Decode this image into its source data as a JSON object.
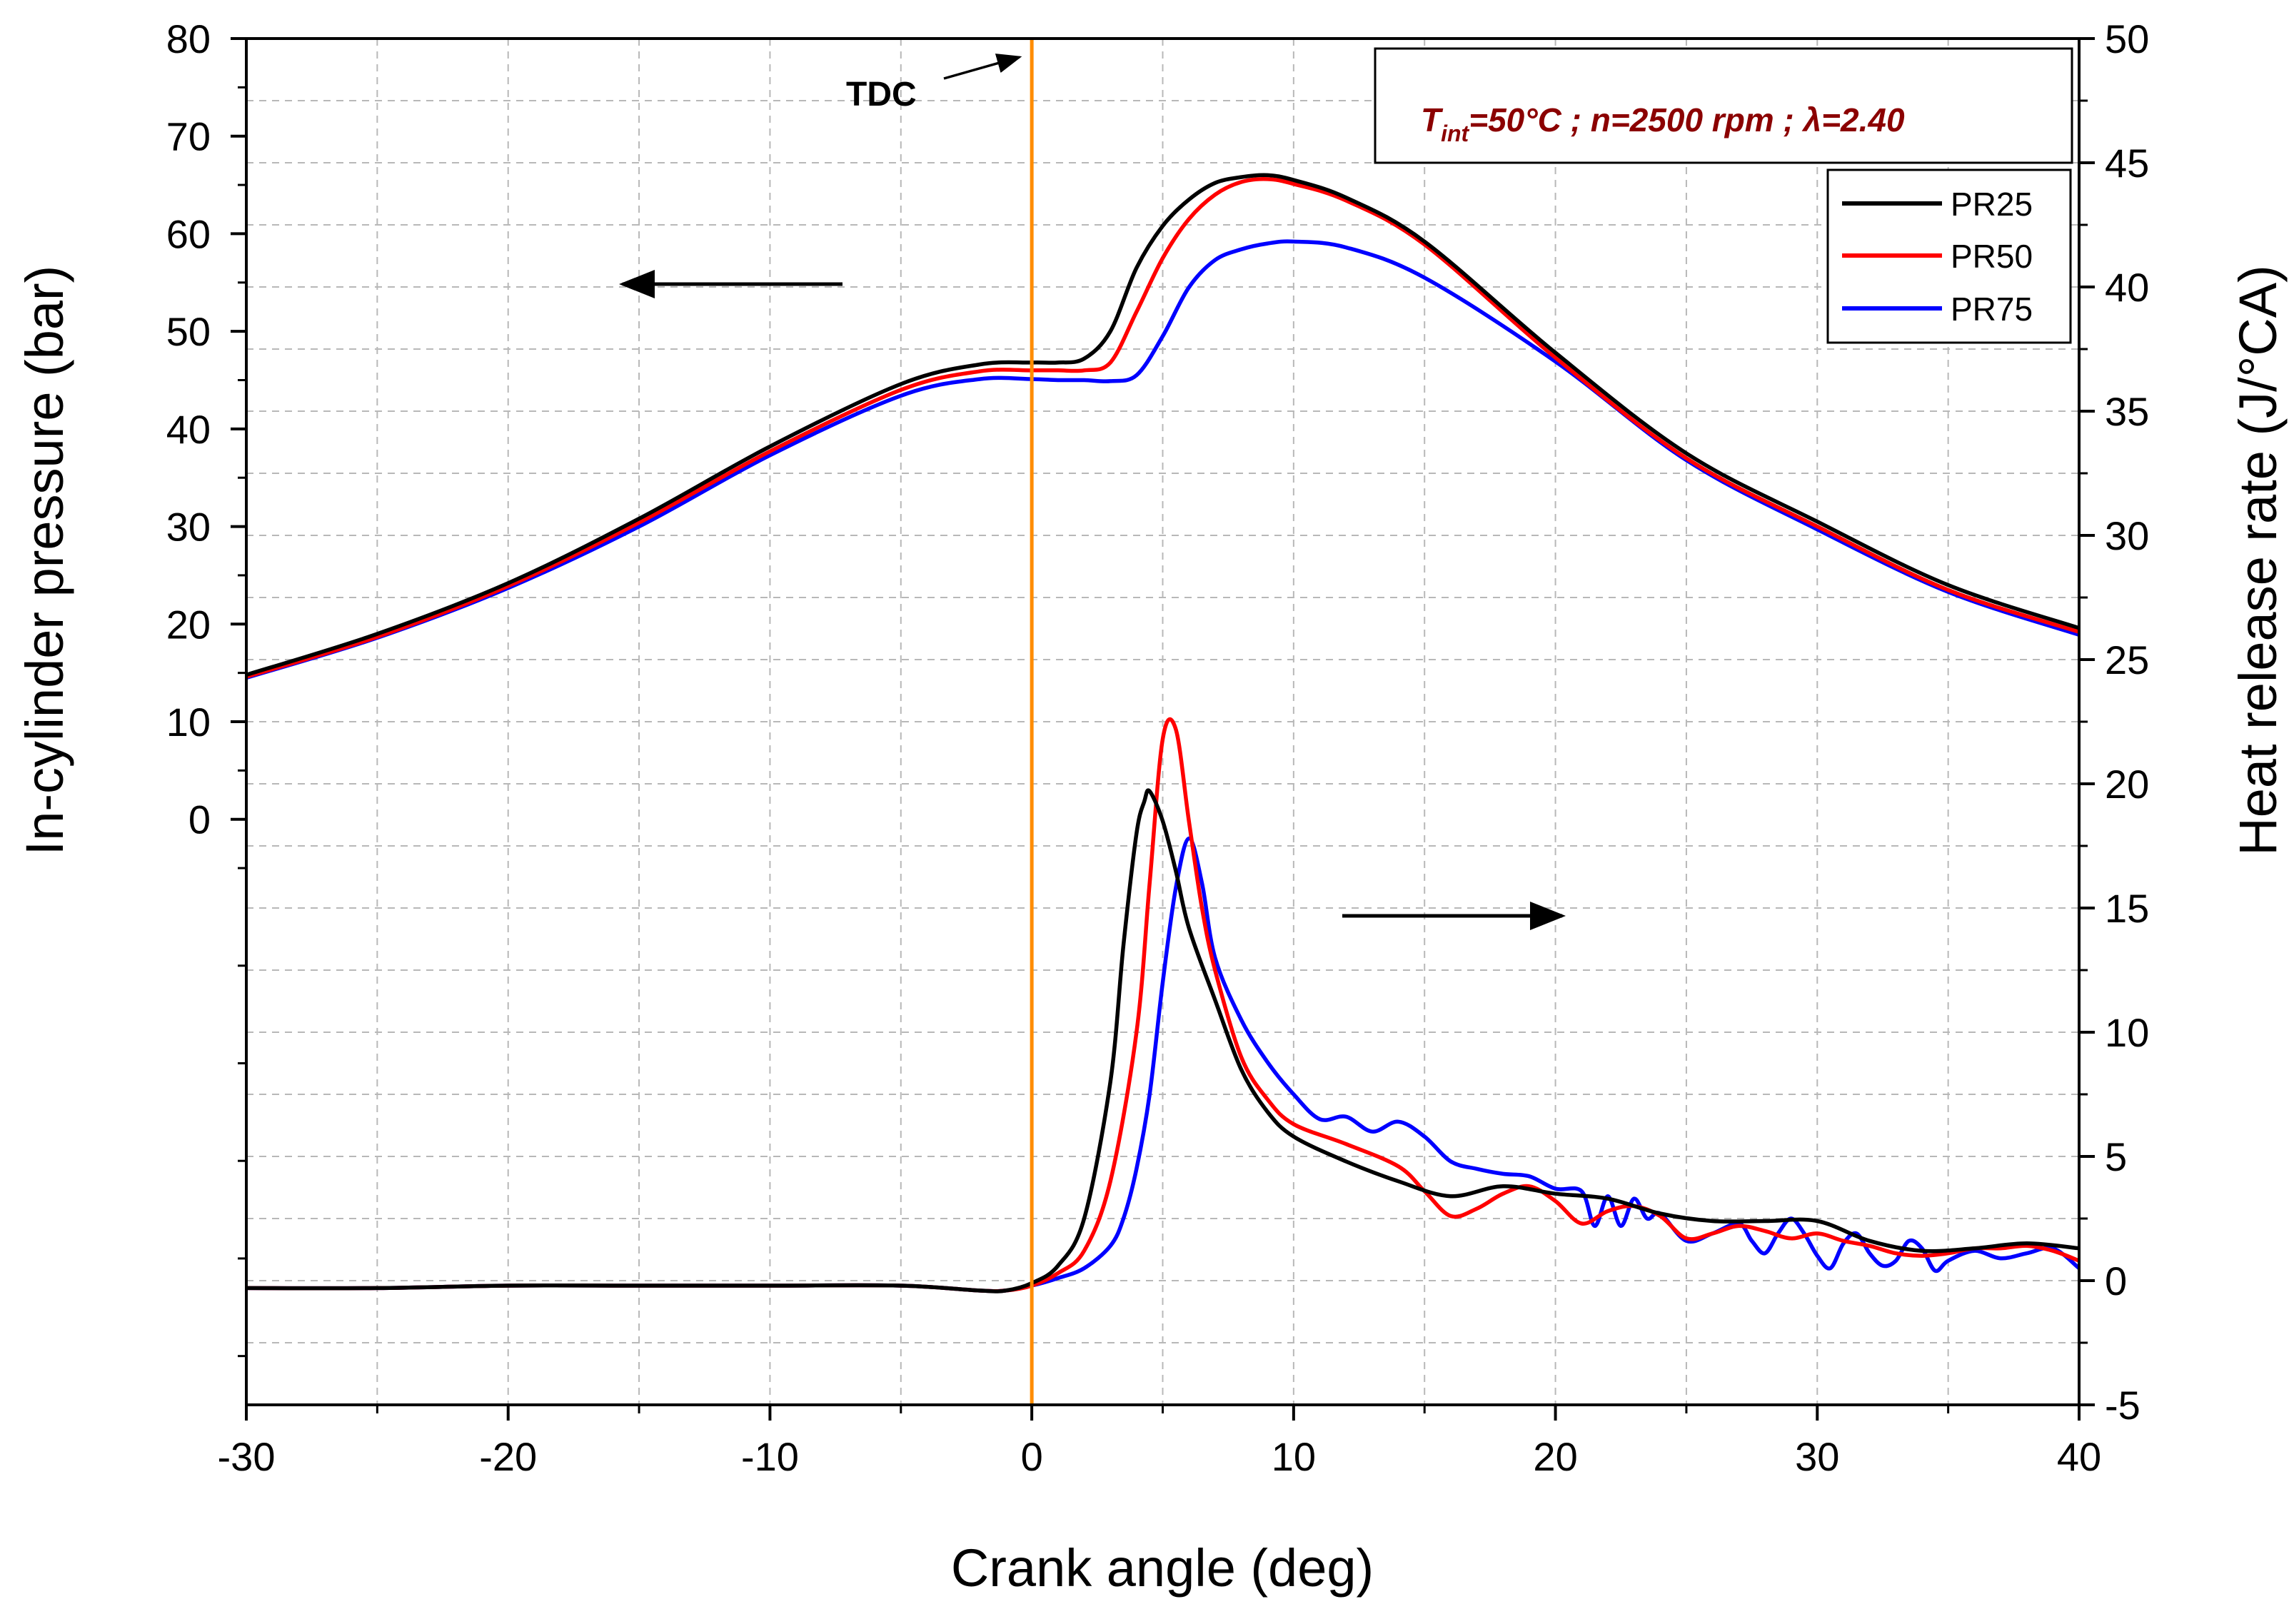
{
  "chart_data": {
    "type": "line",
    "title": "",
    "xlabel": "Crank angle (deg)",
    "ylabel_left": "In-cylinder pressure (bar)",
    "ylabel_right": "Heat release rate  (J/°CA)",
    "xlim": [
      -30,
      40
    ],
    "ylim_left": [
      -60,
      80
    ],
    "ylim_right": [
      -5,
      50
    ],
    "grid": true,
    "x_ticks": [
      "-30",
      "-20",
      "-10",
      "0",
      "10",
      "20",
      "30",
      "40"
    ],
    "y_left_ticks": [
      "80",
      "70",
      "60",
      "50",
      "40",
      "30",
      "20",
      "10",
      "0"
    ],
    "y_right_ticks": [
      "50",
      "45",
      "40",
      "35",
      "30",
      "25",
      "20",
      "15",
      "10",
      "5",
      "0",
      "-5"
    ],
    "legend": {
      "position": "top-right",
      "entries": [
        "PR25",
        "PR50",
        "PR75"
      ]
    },
    "annotations": {
      "tdc_label": "TDC",
      "tdc_x": 0,
      "conditions_prefix": "T",
      "conditions_subscript": "int",
      "conditions_rest": "=50°C ; n=2500 rpm ; λ=2.40",
      "left_arrow": "points to left axis (pressure)",
      "right_arrow": "points to right axis (heat release rate)"
    },
    "colors": {
      "PR25": "#000000",
      "PR50": "#ff0000",
      "PR75": "#0000ff",
      "tdc_line": "#ff8c00",
      "conditions": "#8b0000"
    },
    "pressure_series": [
      {
        "name": "PR25",
        "axis": "left",
        "x": [
          -30,
          -25,
          -20,
          -15,
          -10,
          -5,
          -2,
          0,
          1,
          2,
          3,
          4,
          5,
          6,
          7,
          8,
          9,
          10,
          12,
          15,
          20,
          25,
          30,
          35,
          40
        ],
        "values": [
          14.8,
          19.0,
          24.2,
          30.8,
          38.2,
          44.6,
          46.6,
          46.8,
          46.8,
          47.2,
          50.0,
          56.5,
          60.8,
          63.5,
          65.2,
          65.8,
          66.0,
          65.5,
          63.7,
          59.2,
          47.8,
          37.5,
          30.5,
          24.0,
          19.6
        ]
      },
      {
        "name": "PR50",
        "axis": "left",
        "x": [
          -30,
          -25,
          -20,
          -15,
          -10,
          -5,
          -2,
          0,
          1,
          2,
          3,
          4,
          5,
          6,
          7,
          8,
          9,
          10,
          12,
          15,
          20,
          25,
          30,
          35,
          40
        ],
        "values": [
          14.6,
          18.7,
          23.9,
          30.4,
          37.7,
          44.0,
          45.9,
          46.0,
          46.0,
          46.0,
          46.8,
          52.0,
          57.5,
          61.5,
          64.0,
          65.3,
          65.6,
          65.1,
          63.4,
          58.9,
          47.3,
          37.0,
          30.0,
          23.5,
          19.2
        ]
      },
      {
        "name": "PR75",
        "axis": "left",
        "x": [
          -30,
          -25,
          -20,
          -15,
          -10,
          -5,
          -2,
          0,
          1,
          2,
          3,
          4,
          5,
          6,
          7,
          8,
          9,
          10,
          12,
          15,
          20,
          25,
          30,
          35,
          40
        ],
        "values": [
          14.5,
          18.6,
          23.7,
          30.0,
          37.3,
          43.4,
          45.1,
          45.1,
          45.0,
          45.0,
          44.9,
          45.5,
          49.5,
          54.5,
          57.3,
          58.4,
          59.0,
          59.2,
          58.6,
          55.5,
          46.9,
          36.8,
          29.7,
          23.3,
          18.9
        ]
      }
    ],
    "heat_release_series": [
      {
        "name": "PR25",
        "axis": "right",
        "x": [
          -30,
          -25,
          -20,
          -15,
          -10,
          -5,
          -2,
          -1,
          0,
          1,
          2,
          3,
          3.5,
          4,
          4.3,
          4.5,
          5,
          5.5,
          6,
          7,
          8,
          9,
          10,
          12,
          14,
          16,
          18,
          20,
          22,
          24,
          26,
          28,
          30,
          32,
          34,
          36,
          38,
          40
        ],
        "values": [
          -0.3,
          -0.3,
          -0.2,
          -0.2,
          -0.2,
          -0.2,
          -0.4,
          -0.4,
          -0.1,
          0.6,
          2.5,
          8.0,
          13.5,
          18.0,
          19.3,
          19.7,
          18.5,
          16.5,
          14.2,
          11.3,
          8.5,
          6.8,
          5.8,
          4.8,
          4.0,
          3.4,
          3.8,
          3.5,
          3.3,
          2.7,
          2.4,
          2.4,
          2.4,
          1.6,
          1.2,
          1.3,
          1.5,
          1.3
        ]
      },
      {
        "name": "PR50",
        "axis": "right",
        "x": [
          -30,
          -25,
          -20,
          -15,
          -10,
          -5,
          -2,
          -1,
          0,
          1,
          2,
          3,
          4,
          4.5,
          5,
          5.5,
          6,
          6.5,
          7,
          8,
          9,
          10,
          12,
          14,
          15,
          16,
          17,
          18,
          19,
          20,
          21,
          22,
          23,
          24,
          25,
          26,
          27,
          28,
          29,
          30,
          31,
          32,
          33,
          34,
          35,
          36,
          37,
          38,
          39,
          40
        ],
        "values": [
          -0.3,
          -0.3,
          -0.2,
          -0.2,
          -0.2,
          -0.2,
          -0.4,
          -0.4,
          -0.2,
          0.3,
          1.2,
          4.0,
          10.0,
          16.0,
          21.8,
          22.2,
          18.5,
          15.0,
          12.5,
          9.0,
          7.3,
          6.3,
          5.5,
          4.6,
          3.6,
          2.6,
          2.9,
          3.5,
          3.8,
          3.2,
          2.3,
          2.8,
          3.0,
          2.6,
          1.7,
          1.9,
          2.2,
          2.0,
          1.7,
          1.9,
          1.6,
          1.4,
          1.1,
          1.0,
          1.1,
          1.3,
          1.3,
          1.4,
          1.2,
          0.8
        ]
      },
      {
        "name": "PR75",
        "axis": "right",
        "x": [
          -30,
          -25,
          -20,
          -15,
          -10,
          -5,
          -2,
          -1,
          0,
          1,
          2,
          3,
          3.5,
          4,
          4.5,
          5,
          5.5,
          6,
          6.5,
          7,
          8,
          9,
          10,
          11,
          12,
          13,
          14,
          15,
          16,
          17,
          18,
          19,
          20,
          21,
          21.5,
          22,
          22.5,
          23,
          23.5,
          24,
          25,
          26,
          27,
          27.5,
          28,
          28.5,
          29,
          29.5,
          30,
          30.5,
          31,
          31.5,
          32,
          32.5,
          33,
          33.5,
          34,
          34.5,
          35,
          36,
          37,
          38,
          39,
          40
        ],
        "values": [
          -0.3,
          -0.3,
          -0.2,
          -0.2,
          -0.2,
          -0.2,
          -0.4,
          -0.4,
          -0.2,
          0.1,
          0.5,
          1.4,
          2.5,
          4.5,
          7.5,
          12.0,
          15.8,
          17.8,
          16.0,
          13.0,
          10.5,
          8.8,
          7.5,
          6.5,
          6.6,
          6.0,
          6.4,
          5.8,
          4.8,
          4.5,
          4.3,
          4.2,
          3.7,
          3.6,
          2.2,
          3.4,
          2.2,
          3.3,
          2.5,
          2.7,
          1.6,
          1.9,
          2.3,
          1.6,
          1.1,
          1.9,
          2.5,
          1.9,
          1.0,
          0.5,
          1.5,
          1.9,
          1.1,
          0.6,
          0.8,
          1.6,
          1.3,
          0.4,
          0.8,
          1.2,
          0.9,
          1.1,
          1.3,
          0.5
        ]
      }
    ]
  }
}
